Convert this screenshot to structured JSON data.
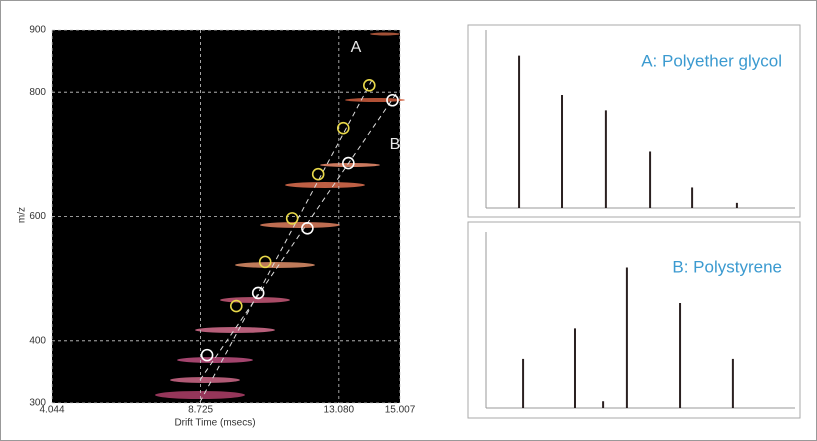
{
  "chart_data": [
    {
      "type": "scatter",
      "x_label": "Drift Time (msecs)",
      "y_label": "m/z",
      "xlim": [
        4.044,
        15.007
      ],
      "xticks": [
        4.044,
        8.725,
        {
          "value": 13.08,
          "label": "13.080"
        },
        15.007
      ],
      "ylim": [
        300,
        900
      ],
      "yticks": [
        300,
        400,
        600,
        800,
        900
      ],
      "grid": true,
      "series": [
        {
          "name": "A",
          "color": "#e8d84a",
          "x": [
            14.04,
            13.22,
            12.43,
            11.61,
            10.76,
            9.85
          ],
          "values": [
            811,
            742,
            668,
            597,
            527,
            456
          ]
        },
        {
          "name": "B",
          "color": "#ffffff",
          "x": [
            14.77,
            13.38,
            12.09,
            10.54,
            8.93
          ],
          "values": [
            787,
            686,
            581,
            477,
            377
          ]
        }
      ]
    },
    {
      "type": "stem",
      "title": "A: Polyether glycol",
      "color": "#2a2020",
      "xlim": [
        0,
        100
      ],
      "ylim": [
        0,
        100
      ],
      "x": [
        10.7,
        24.6,
        38.8,
        53.1,
        66.7,
        81.2
      ],
      "values": [
        89,
        66,
        57,
        33,
        12,
        3
      ]
    },
    {
      "type": "stem",
      "title": "B: Polystyrene",
      "color": "#2a2020",
      "xlim": [
        0,
        100
      ],
      "ylim": [
        0,
        100
      ],
      "x": [
        12.0,
        28.8,
        37.9,
        45.6,
        62.8,
        79.9
      ],
      "values": [
        29,
        47,
        4,
        83,
        62,
        29
      ]
    }
  ]
}
